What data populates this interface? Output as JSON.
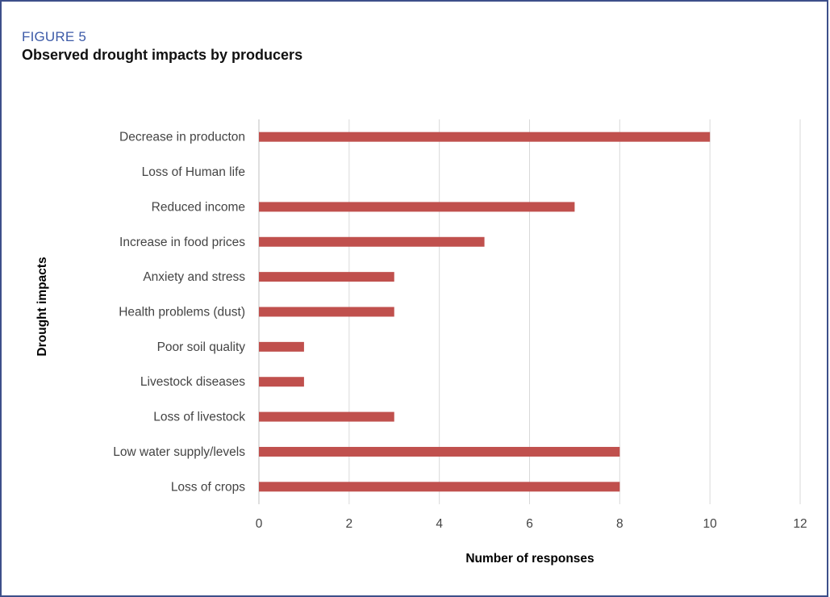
{
  "figure": {
    "label": "FIGURE 5",
    "title": "Observed drought impacts by producers"
  },
  "chart_data": {
    "type": "bar",
    "orientation": "horizontal",
    "categories": [
      "Decrease in producton",
      "Loss of Human life",
      "Reduced income",
      "Increase in food prices",
      "Anxiety and stress",
      "Health problems (dust)",
      "Poor soil quality",
      "Livestock diseases",
      "Loss of livestock",
      "Low water supply/levels",
      "Loss of crops"
    ],
    "values": [
      10,
      0,
      7,
      5,
      3,
      3,
      1,
      1,
      3,
      8,
      8
    ],
    "xlabel": "Number of responses",
    "ylabel": "Drought impacts",
    "xlim": [
      0,
      12
    ],
    "xticks": [
      0,
      2,
      4,
      6,
      8,
      10,
      12
    ],
    "grid": "vertical",
    "legend": "none",
    "bar_color": "#c0504d"
  },
  "colors": {
    "frame": "#3d4f8a",
    "figure_label": "#3d5ba8",
    "gridline": "#d9d9d9"
  }
}
